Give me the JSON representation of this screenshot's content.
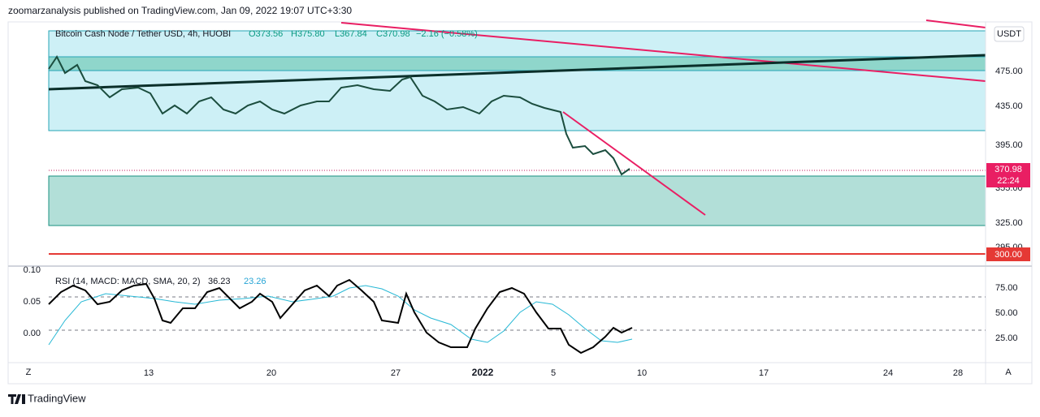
{
  "header": {
    "text": "zoomarzanalysis published on TradingView.com, Jan 09, 2022 19:07 UTC+3:30"
  },
  "legend": {
    "symbol": "Bitcoin Cash Node / Tether USD, 4h, HUOBI",
    "open": "O373.56",
    "high": "H375.80",
    "low": "L367.84",
    "close": "C370.98",
    "change": "−2.16 (−0.58%)"
  },
  "currency": "USDT",
  "price_axis": [
    "475.00",
    "435.00",
    "395.00",
    "355.00",
    "325.00",
    "295.00"
  ],
  "badges": {
    "last": "370.98",
    "countdown": "22:24",
    "level": "300.00"
  },
  "rsi_legend": {
    "title": "RSI (14, MACD: MACD, SMA, 20, 2)",
    "rsi": "36.23",
    "signal": "23.26"
  },
  "macd_axis": [
    "0.10",
    "0.05",
    "0.00"
  ],
  "rsi_axis": [
    "75.00",
    "50.00",
    "25.00"
  ],
  "time_axis": [
    "13",
    "20",
    "27",
    "2022",
    "5",
    "10",
    "17",
    "24",
    "28"
  ],
  "buttons": {
    "left": "Z",
    "right": "A"
  },
  "footer": {
    "brand": "TradingView"
  }
}
